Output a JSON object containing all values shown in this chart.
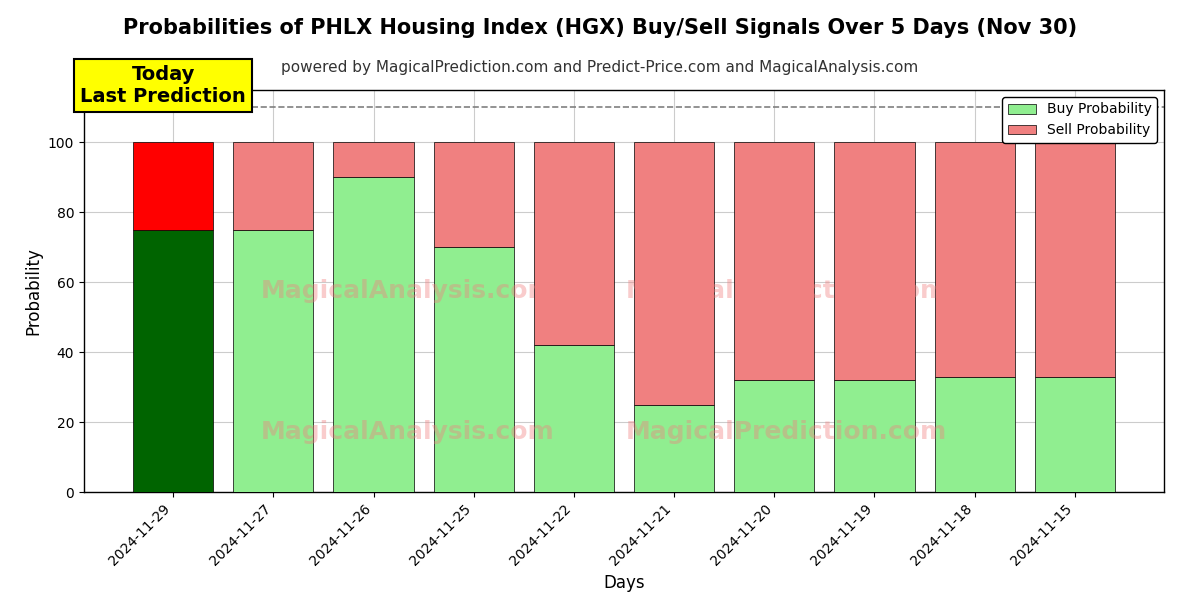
{
  "title": "Probabilities of PHLX Housing Index (HGX) Buy/Sell Signals Over 5 Days (Nov 30)",
  "subtitle": "powered by MagicalPrediction.com and Predict-Price.com and MagicalAnalysis.com",
  "xlabel": "Days",
  "ylabel": "Probability",
  "categories": [
    "2024-11-29",
    "2024-11-27",
    "2024-11-26",
    "2024-11-25",
    "2024-11-22",
    "2024-11-21",
    "2024-11-20",
    "2024-11-19",
    "2024-11-18",
    "2024-11-15"
  ],
  "buy_values": [
    75,
    75,
    90,
    70,
    42,
    25,
    32,
    32,
    33,
    33
  ],
  "sell_values": [
    25,
    25,
    10,
    30,
    58,
    75,
    68,
    68,
    67,
    67
  ],
  "bar_colors_buy_today": "#006400",
  "bar_colors_buy_rest": "#90EE90",
  "bar_colors_sell_today": "#FF0000",
  "bar_colors_sell_rest": "#F08080",
  "bar_width": 0.8,
  "ylim": [
    0,
    115
  ],
  "yticks": [
    0,
    20,
    40,
    60,
    80,
    100
  ],
  "dashed_line_y": 110,
  "annotation_text": "Today\nLast Prediction",
  "annotation_fontsize": 14,
  "legend_buy": "Buy Probability",
  "legend_sell": "Sell Probability",
  "background_color": "#ffffff",
  "grid_color": "#cccccc",
  "title_fontsize": 15,
  "subtitle_fontsize": 11
}
